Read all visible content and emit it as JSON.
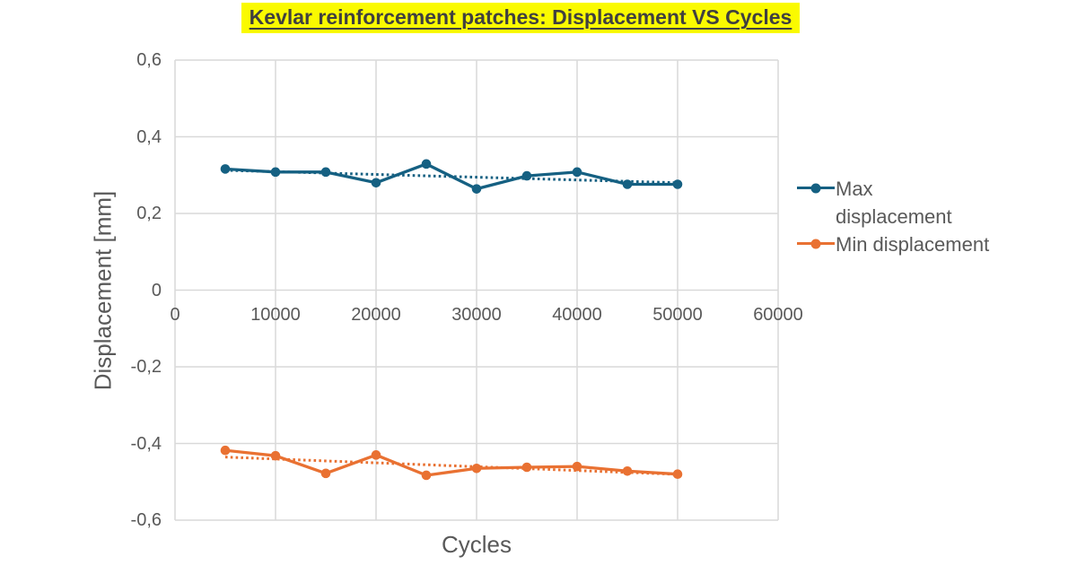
{
  "colors": {
    "series_max": "#156082",
    "series_min": "#E97132",
    "axis_text": "#595959",
    "gridline": "#D9D9D9",
    "title_text": "#404040",
    "title_highlight": "#FAFA00",
    "background": "#FFFFFF"
  },
  "chart_data": {
    "type": "line",
    "title": "Kevlar reinforcement patches: Displacement VS Cycles",
    "xlabel": "Cycles",
    "ylabel": "Displacement [mm]",
    "xlim": [
      0,
      60000
    ],
    "ylim": [
      -0.6,
      0.6
    ],
    "grid": true,
    "legend_position": "right",
    "xticks": [
      0,
      10000,
      20000,
      30000,
      40000,
      50000,
      60000
    ],
    "xtick_labels": [
      "0",
      "10000",
      "20000",
      "30000",
      "40000",
      "50000",
      "60000"
    ],
    "yticks": [
      0.6,
      0.4,
      0.2,
      0,
      -0.2,
      -0.4,
      -0.6
    ],
    "ytick_labels": [
      "0,6",
      "0,4",
      "0,2",
      "0",
      "-0,2",
      "-0,4",
      "-0,6"
    ],
    "x": [
      5000,
      10000,
      15000,
      20000,
      25000,
      30000,
      35000,
      40000,
      45000,
      50000
    ],
    "series": [
      {
        "name": "Max displacement",
        "color": "#156082",
        "marker": "circle",
        "values": [
          0.316,
          0.308,
          0.308,
          0.28,
          0.329,
          0.264,
          0.298,
          0.308,
          0.276,
          0.276
        ],
        "trendline": {
          "type": "linear",
          "style": "dotted"
        }
      },
      {
        "name": "Min displacement",
        "color": "#E97132",
        "marker": "circle",
        "values": [
          -0.418,
          -0.432,
          -0.478,
          -0.43,
          -0.483,
          -0.465,
          -0.462,
          -0.46,
          -0.472,
          -0.48
        ],
        "trendline": {
          "type": "linear",
          "style": "dotted"
        }
      }
    ]
  }
}
